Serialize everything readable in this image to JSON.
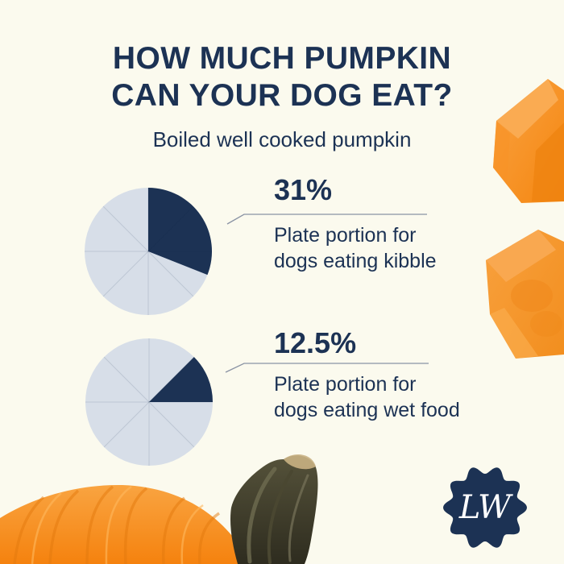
{
  "page": {
    "background_color": "#FBFAEE",
    "title_line1": "HOW MUCH PUMPKIN",
    "title_line2": "CAN YOUR DOG EAT?",
    "subtitle": "Boiled well cooked pumpkin",
    "text_color": "#1C3254"
  },
  "chart_data": [
    {
      "type": "pie",
      "value_label": "31%",
      "value_pct": 31,
      "start_deg": 0,
      "grid_slices": 8,
      "label": "Plate portion for dogs eating kibble",
      "label_lines": [
        "Plate portion for",
        "dogs eating kibble"
      ],
      "colors": {
        "filled": "#1C3254",
        "empty": "#D7DEE8",
        "grid_line": "rgba(15,35,70,0.13)"
      },
      "legend": "none"
    },
    {
      "type": "pie",
      "value_label": "12.5%",
      "value_pct": 12.5,
      "start_deg": 45,
      "grid_slices": 8,
      "label": "Plate portion for dogs eating wet food",
      "label_lines": [
        "Plate portion for",
        "dogs eating wet food"
      ],
      "colors": {
        "filled": "#1C3254",
        "empty": "#D7DEE8",
        "grid_line": "rgba(15,35,70,0.13)"
      },
      "legend": "none"
    }
  ],
  "logo": {
    "initials": "LW",
    "badge_color": "#1C3254",
    "text_color": "#FFFFFF",
    "scallops": 10
  },
  "decorations": {
    "top_right": "pumpkin-cube-photo",
    "middle_right": "pumpkin-cube-photo",
    "bottom_left": "pumpkin-with-stem-photo",
    "callout_line_color": "#8A93A4",
    "orange": "#F78F1E",
    "orange_light": "#FAA94E",
    "orange_dark": "#EF8110",
    "stem_dark": "#2F2D20",
    "stem_light": "#6E6B50"
  }
}
